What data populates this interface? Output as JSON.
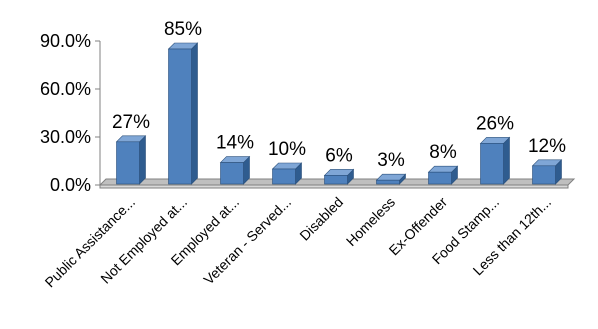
{
  "chart_data": {
    "type": "bar",
    "title": "",
    "xlabel": "",
    "ylabel": "",
    "categories": [
      "Public Assistance...",
      "Not Employed at...",
      "Employed at...",
      "Veteran - Served...",
      "Disabled",
      "Homeless",
      "Ex-Offender",
      "Food Stamp...",
      "Less than 12th..."
    ],
    "values": [
      27,
      85,
      14,
      10,
      6,
      3,
      8,
      26,
      12
    ],
    "data_labels": [
      "27%",
      "85%",
      "14%",
      "10%",
      "6%",
      "3%",
      "8%",
      "26%",
      "12%"
    ],
    "ylim": [
      0,
      90
    ],
    "yticks": [
      0,
      30,
      60,
      90
    ],
    "ytick_labels": [
      "0.0%",
      "30.0%",
      "60.0%",
      "90.0%"
    ],
    "grid": false,
    "legend": "none",
    "style": "3d-column",
    "colors": {
      "bar_front": "#4F81BD",
      "bar_side": "#2F5C8F",
      "bar_top": "#7FA6D6",
      "floor": "#BFBFBF",
      "axis": "#808080"
    }
  }
}
